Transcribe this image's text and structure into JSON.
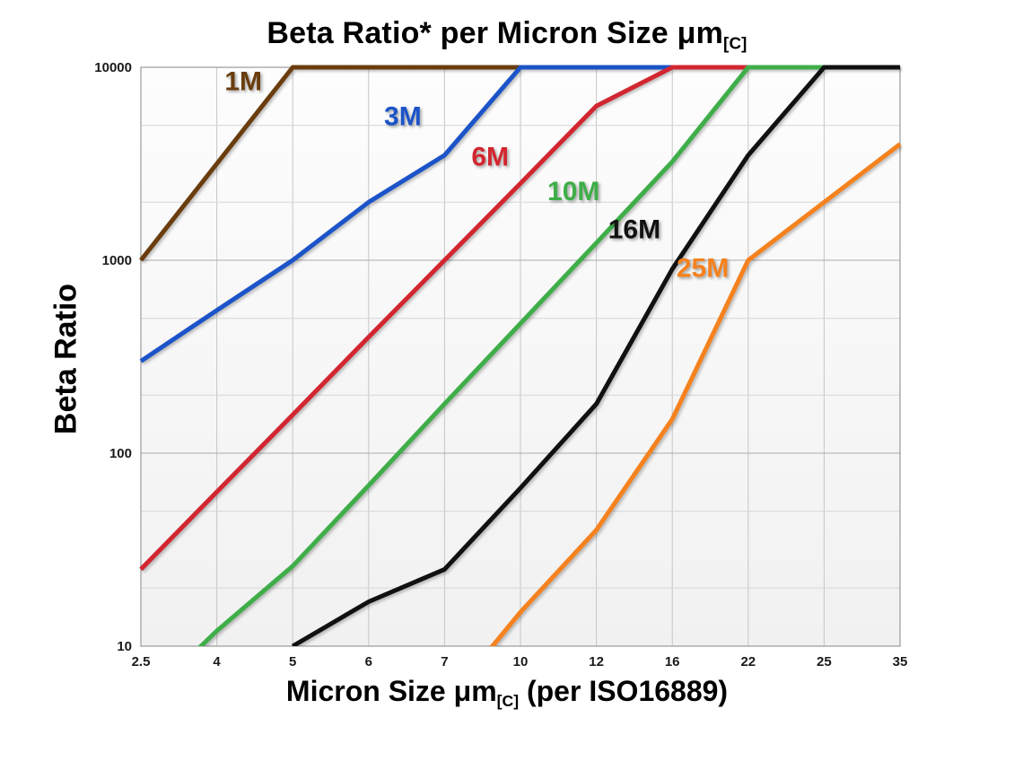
{
  "title": {
    "main": "Beta Ratio* per Micron Size μm",
    "sub": "[C]"
  },
  "y_axis_label": "Beta Ratio",
  "x_axis_label": {
    "main": "Micron Size μm",
    "sub": "[C]",
    "suffix": " (per ISO16889)"
  },
  "chart_data": {
    "type": "line",
    "x_scale": "ordinal",
    "y_scale": "log",
    "categories": [
      2.5,
      4,
      5,
      6,
      7,
      10,
      12,
      16,
      22,
      25,
      35
    ],
    "ylim": [
      10,
      10000
    ],
    "y_major_ticks": [
      10000,
      1000,
      100,
      10
    ],
    "y_minor_gridlines": [
      20,
      50,
      200,
      500,
      2000,
      5000
    ],
    "grid": true,
    "legend_position": "inline-labels",
    "colors": {
      "grid_minor": "#d6d6d6",
      "grid_major": "#ababab",
      "grid_vertical": "#c6c6c6",
      "plot_border": "#9a9a9a",
      "tick_text": "#1a1a1a",
      "plot_bg_top": "#fdfdfd",
      "plot_bg_bottom": "#f1f1f1"
    },
    "series": [
      {
        "name": "1M",
        "color": "#6a3d0e",
        "values": [
          1000,
          3162,
          10000,
          10000,
          10000,
          10000,
          10000,
          10000,
          10000,
          10000,
          10000
        ]
      },
      {
        "name": "3M",
        "color": "#1c54c8",
        "values": [
          300,
          550,
          1000,
          2000,
          3500,
          10000,
          10000,
          10000,
          10000,
          10000,
          10000
        ]
      },
      {
        "name": "6M",
        "color": "#d22630",
        "values": [
          25,
          63,
          158,
          400,
          1000,
          2500,
          6300,
          10000,
          10000,
          10000,
          10000
        ]
      },
      {
        "name": "10M",
        "color": "#3fae49",
        "values": [
          5,
          12,
          26,
          68,
          180,
          470,
          1230,
          3240,
          10000,
          10000,
          10000
        ]
      },
      {
        "name": "16M",
        "color": "#111111",
        "values": [
          null,
          null,
          10,
          17,
          25,
          66,
          180,
          900,
          3500,
          10000,
          10000
        ]
      },
      {
        "name": "25M",
        "color": "#f5821f",
        "values": [
          null,
          null,
          null,
          null,
          5,
          15,
          40,
          150,
          1000,
          2000,
          4000
        ]
      }
    ],
    "annotations": [
      {
        "text": "1M",
        "color": "#6a3d0e",
        "cx": 1.35,
        "y": 7600
      },
      {
        "text": "3M",
        "color": "#1c54c8",
        "cx": 3.45,
        "y": 5000
      },
      {
        "text": "6M",
        "color": "#d22630",
        "cx": 4.6,
        "y": 3100
      },
      {
        "text": "10M",
        "color": "#3fae49",
        "cx": 5.7,
        "y": 2050
      },
      {
        "text": "16M",
        "color": "#111111",
        "cx": 6.5,
        "y": 1300
      },
      {
        "text": "25M",
        "color": "#f5821f",
        "cx": 7.4,
        "y": 820
      }
    ]
  }
}
